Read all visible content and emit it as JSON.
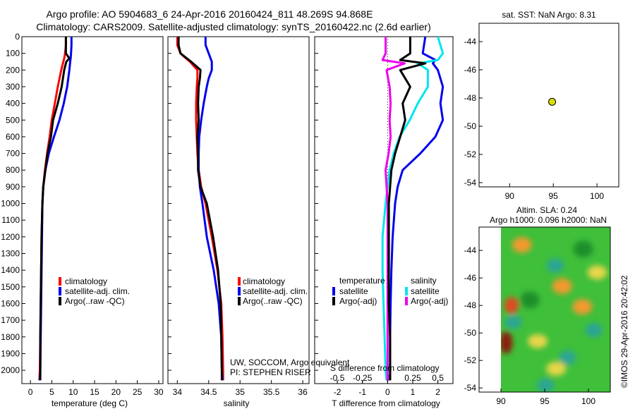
{
  "header": {
    "title_line1": "Argo profile: AO 5904683_6 24-Apr-2016 20160424_811 48.269S 94.868E",
    "title_line2": "Climatology: CARS2009. Satellite-adjusted climatology: synTS_20160422.nc (2.6d earlier)"
  },
  "colors": {
    "climatology": "#ff0000",
    "satellite": "#0000ee",
    "argo": "#000000",
    "cyan": "#00e5ee",
    "magenta": "#ee00ee",
    "marker": "#dddd00"
  },
  "y_axis": {
    "ticks": [
      "0",
      "100",
      "200",
      "300",
      "400",
      "500",
      "600",
      "700",
      "800",
      "900",
      "1000",
      "1100",
      "1200",
      "1300",
      "1400",
      "1500",
      "1600",
      "1700",
      "1800",
      "1900",
      "2000"
    ]
  },
  "legend_profile": {
    "climatology": "climatology",
    "satellite": "satellite-adj. clim.",
    "argo": "Argo(..raw -QC)"
  },
  "legend_diff": {
    "temp_header": "temperature",
    "sal_header": "salinity",
    "satellite": "satellite",
    "argo": "Argo(-adj)"
  },
  "annotations": {
    "credit1": "UW, SOCCOM, Argo equivalent",
    "credit2": "PI: STEPHEN RISER",
    "s_axis_label": "S difference from climatology",
    "s_ticks": [
      "-0.5",
      "-0.25",
      "0",
      "0.25",
      "0.5"
    ],
    "map_title": "sat. SST: NaN Argo: 8.31",
    "sla_line1": "Altim. SLA: 0.24",
    "sla_line2": "Argo h1000: 0.096 h2000: NaN",
    "imos": "©IMOS 29-Apr-2016 20:42:02"
  },
  "chart_data": [
    {
      "type": "line",
      "xlabel": "temperature (deg C)",
      "ylabel": "",
      "xlim": [
        -2,
        31
      ],
      "ylim": [
        2080,
        0
      ],
      "xticks": [
        "0",
        "5",
        "10",
        "15",
        "20",
        "25",
        "30"
      ],
      "y": [
        0,
        50,
        100,
        130,
        150,
        200,
        300,
        400,
        500,
        600,
        700,
        800,
        900,
        1000,
        1200,
        1400,
        1600,
        1800,
        2000,
        2060
      ],
      "series": [
        {
          "name": "climatology",
          "color": "#ff0000",
          "values": [
            8.3,
            8.3,
            8.1,
            7.9,
            7.7,
            7.2,
            6.4,
            5.7,
            5.0,
            4.5,
            3.9,
            3.4,
            3.0,
            2.8,
            2.6,
            2.5,
            2.4,
            2.3,
            2.2,
            2.1
          ]
        },
        {
          "name": "satellite-adj. clim.",
          "color": "#0000ee",
          "values": [
            9.6,
            9.6,
            9.5,
            9.4,
            9.3,
            9.1,
            8.6,
            7.8,
            6.8,
            5.5,
            4.3,
            3.5,
            3.0,
            2.8,
            2.7,
            2.6,
            2.5,
            2.4,
            2.3,
            2.2
          ]
        },
        {
          "name": "Argo(..raw -QC)",
          "color": "#000000",
          "values": [
            8.3,
            8.3,
            8.3,
            9.1,
            8.4,
            7.9,
            7.3,
            6.4,
            5.3,
            4.8,
            4.0,
            3.5,
            3.0,
            2.8,
            2.6,
            2.5,
            2.4,
            2.3,
            2.3,
            2.3
          ]
        }
      ]
    },
    {
      "type": "line",
      "xlabel": "salinity",
      "ylabel": "",
      "xlim": [
        33.85,
        36.1
      ],
      "ylim": [
        2080,
        0
      ],
      "xticks": [
        "34",
        "34.5",
        "35",
        "35.5",
        "36"
      ],
      "y": [
        0,
        50,
        100,
        150,
        200,
        250,
        300,
        400,
        500,
        600,
        700,
        800,
        900,
        1000,
        1200,
        1400,
        1600,
        1800,
        2000,
        2060
      ],
      "series": [
        {
          "name": "climatology",
          "color": "#ff0000",
          "values": [
            34.0,
            34.0,
            34.05,
            34.2,
            34.32,
            34.32,
            34.31,
            34.3,
            34.3,
            34.31,
            34.32,
            34.34,
            34.38,
            34.45,
            34.55,
            34.64,
            34.7,
            34.72,
            34.73,
            34.73
          ]
        },
        {
          "name": "satellite-adj. clim.",
          "color": "#0000ee",
          "values": [
            34.45,
            34.45,
            34.5,
            34.55,
            34.55,
            34.5,
            34.47,
            34.42,
            34.38,
            34.35,
            34.34,
            34.34,
            34.36,
            34.4,
            34.47,
            34.58,
            34.66,
            34.7,
            34.71,
            34.72
          ]
        },
        {
          "name": "Argo(..raw -QC)",
          "color": "#000000",
          "values": [
            34.02,
            34.02,
            34.05,
            34.22,
            34.37,
            34.36,
            34.34,
            34.33,
            34.34,
            34.32,
            34.33,
            34.33,
            34.37,
            34.47,
            34.57,
            34.65,
            34.69,
            34.7,
            34.71,
            34.71
          ]
        }
      ]
    },
    {
      "type": "line",
      "xlabel": "T difference from climatology",
      "ylabel": "",
      "xlim": [
        -2.9,
        2.6
      ],
      "ylim": [
        2080,
        0
      ],
      "xticks": [
        "-2",
        "-1",
        "0",
        "1",
        "2"
      ],
      "secondary_xlabel": "S difference from climatology",
      "secondary_xlim": [
        -0.725,
        0.65
      ],
      "y": [
        0,
        100,
        140,
        160,
        200,
        300,
        400,
        500,
        600,
        700,
        800,
        900,
        1000,
        1200,
        1400,
        1600,
        1800,
        2000,
        2060
      ],
      "series": [
        {
          "name": "temperature satellite",
          "color": "#0000ee",
          "axis": "T",
          "values": [
            1.5,
            1.4,
            1.9,
            1.8,
            2.0,
            2.2,
            2.1,
            2.2,
            1.9,
            1.3,
            0.6,
            0.4,
            0.3,
            0.2,
            0.15,
            0.12,
            0.1,
            0.1,
            0.1
          ]
        },
        {
          "name": "temperature Argo(-adj)",
          "color": "#000000",
          "axis": "T",
          "values": [
            0.9,
            0.9,
            0.5,
            1.5,
            0.5,
            0.9,
            0.6,
            0.7,
            0.5,
            0.3,
            0.15,
            0.1,
            0.05,
            0.05,
            0.05,
            0.05,
            0.1,
            0.1,
            0.1
          ]
        },
        {
          "name": "salinity satellite",
          "color": "#00e5ee",
          "axis": "S",
          "values": [
            0.5,
            0.55,
            0.5,
            0.3,
            0.4,
            0.4,
            0.3,
            0.22,
            0.12,
            0.06,
            0.02,
            0.0,
            -0.02,
            -0.05,
            -0.05,
            -0.04,
            -0.03,
            -0.02,
            -0.01
          ]
        },
        {
          "name": "salinity Argo(-adj)",
          "color": "#ee00ee",
          "axis": "S",
          "values": [
            -0.02,
            -0.02,
            -0.05,
            0.17,
            -0.01,
            0.02,
            0.03,
            0.02,
            0.03,
            0.01,
            -0.02,
            -0.01,
            0.0,
            0.0,
            0.0,
            0.0,
            0.0,
            0.0,
            0.0
          ]
        }
      ]
    },
    {
      "type": "scatter",
      "title": "sat. SST: NaN Argo: 8.31",
      "xlim": [
        86.5,
        102.5
      ],
      "ylim": [
        -54.3,
        -42.7
      ],
      "xticks": [
        "90",
        "95",
        "100"
      ],
      "yticks": [
        "-44",
        "-46",
        "-48",
        "-50",
        "-52",
        "-54"
      ],
      "points": [
        {
          "x": 94.868,
          "y": -48.269
        }
      ]
    },
    {
      "type": "heatmap",
      "title": "Altim. SLA: 0.24",
      "subtitle": "Argo h1000: 0.096 h2000: NaN",
      "xlim": [
        87.5,
        102.5
      ],
      "ylim": [
        -54.3,
        -42.3
      ],
      "xticks": [
        "90",
        "95",
        "100"
      ],
      "yticks": [
        "-44",
        "-46",
        "-48",
        "-50",
        "-52",
        "-54"
      ],
      "data_x_start": 90,
      "blobs": [
        {
          "x": 90.6,
          "y": -50.7,
          "kind": "darkred"
        },
        {
          "x": 91.2,
          "y": -48.0,
          "kind": "red"
        },
        {
          "x": 91.4,
          "y": -49.2,
          "kind": "teal"
        },
        {
          "x": 96.2,
          "y": -45.1,
          "kind": "teal"
        },
        {
          "x": 97.6,
          "y": -51.8,
          "kind": "teal"
        },
        {
          "x": 100.6,
          "y": -49.8,
          "kind": "teal"
        },
        {
          "x": 92.4,
          "y": -43.6,
          "kind": "orange"
        },
        {
          "x": 97.0,
          "y": -46.6,
          "kind": "orange"
        },
        {
          "x": 99.3,
          "y": -48.1,
          "kind": "orange"
        },
        {
          "x": 94.2,
          "y": -50.6,
          "kind": "yellow"
        },
        {
          "x": 96.3,
          "y": -52.6,
          "kind": "yellow"
        },
        {
          "x": 101.0,
          "y": -45.6,
          "kind": "yellow"
        },
        {
          "x": 93.3,
          "y": -47.6,
          "kind": "darkgreen"
        },
        {
          "x": 99.4,
          "y": -43.9,
          "kind": "darkgreen"
        },
        {
          "x": 95.1,
          "y": -53.8,
          "kind": "teal"
        }
      ]
    }
  ]
}
